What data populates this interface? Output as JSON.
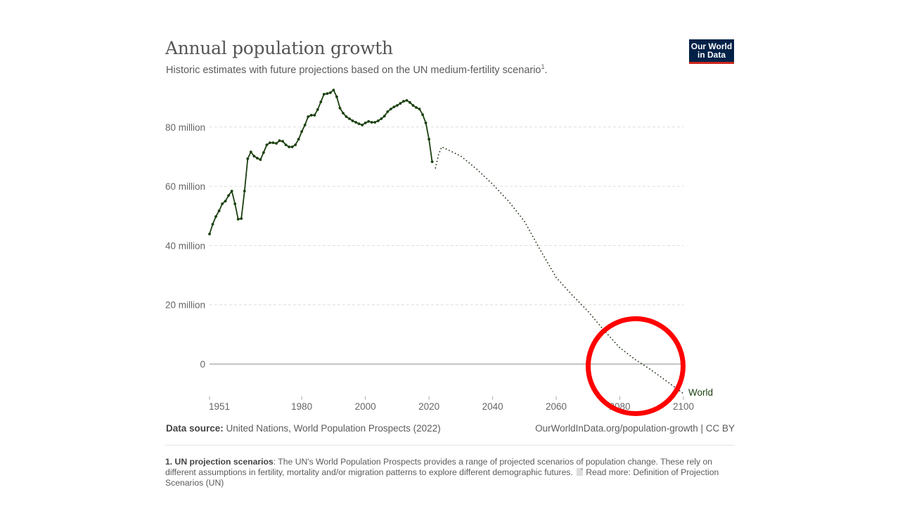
{
  "header": {
    "title": "Annual population growth",
    "subtitle": "Historic estimates with future projections based on the UN medium-fertility scenario",
    "subtitle_footnote_marker": "1",
    "subtitle_end": "."
  },
  "logo": {
    "line1": "Our World",
    "line2": "in Data",
    "bg_color": "#002147",
    "accent_color": "#ce261e"
  },
  "footer": {
    "source_label": "Data source:",
    "source_text": " United Nations, World Population Prospects (2022)",
    "url_text": "OurWorldInData.org/population-growth | CC BY"
  },
  "footnote": {
    "label": "1. UN projection scenarios",
    "text": ": The UN's World Population Prospects provides a range of projected scenarios of population change. These rely on different assumptions in fertility, mortality and/or migration patterns to explore different demographic futures.",
    "read_more": "Read more: Definition of Projection Scenarios (UN)"
  },
  "annotation": {
    "type": "red-circle",
    "color": "#ff0000",
    "highlight": "projection crossing zero around 2085–2090"
  },
  "chart_data": {
    "type": "line",
    "title": "Annual population growth",
    "xlabel": "",
    "ylabel": "",
    "xlim": [
      1951,
      2100
    ],
    "ylim": [
      -10,
      92.5
    ],
    "x_ticks": [
      1951,
      1980,
      2000,
      2020,
      2040,
      2060,
      2080,
      2100
    ],
    "y_ticks": [
      {
        "value": 0,
        "label": "0"
      },
      {
        "value": 20,
        "label": "20 million"
      },
      {
        "value": 40,
        "label": "40 million"
      },
      {
        "value": 60,
        "label": "60 million"
      },
      {
        "value": 80,
        "label": "80 million"
      }
    ],
    "grid": "horizontal dashed",
    "line_color": "#1b4010",
    "series": [
      {
        "name": "World",
        "label_position": "end-right",
        "style": "solid with markers",
        "unit": "million people",
        "x": [
          1951,
          1952,
          1953,
          1954,
          1955,
          1956,
          1957,
          1958,
          1959,
          1960,
          1961,
          1962,
          1963,
          1964,
          1965,
          1966,
          1967,
          1968,
          1969,
          1970,
          1971,
          1972,
          1973,
          1974,
          1975,
          1976,
          1977,
          1978,
          1979,
          1980,
          1981,
          1982,
          1983,
          1984,
          1985,
          1986,
          1987,
          1988,
          1989,
          1990,
          1991,
          1992,
          1993,
          1994,
          1995,
          1996,
          1997,
          1998,
          1999,
          2000,
          2001,
          2002,
          2003,
          2004,
          2005,
          2006,
          2007,
          2008,
          2009,
          2010,
          2011,
          2012,
          2013,
          2014,
          2015,
          2016,
          2017,
          2018,
          2019,
          2020,
          2021
        ],
        "values": [
          43.9,
          47.2,
          49.8,
          51.7,
          54.1,
          55.0,
          56.9,
          58.4,
          54.1,
          48.9,
          49.1,
          58.4,
          69.3,
          71.6,
          70.2,
          69.5,
          69.0,
          71.4,
          74.0,
          74.7,
          74.7,
          74.5,
          75.4,
          75.2,
          74.0,
          73.3,
          73.3,
          74.0,
          75.9,
          78.5,
          80.7,
          83.5,
          84.0,
          84.0,
          85.9,
          88.5,
          91.1,
          91.3,
          91.6,
          92.5,
          90.2,
          86.4,
          84.7,
          83.5,
          82.8,
          82.1,
          81.6,
          81.1,
          80.7,
          81.4,
          81.9,
          81.6,
          81.6,
          82.1,
          82.8,
          83.7,
          85.2,
          86.1,
          86.8,
          87.3,
          88.0,
          88.7,
          89.0,
          88.3,
          87.3,
          86.6,
          86.1,
          84.2,
          81.4,
          75.9,
          68.3
        ]
      },
      {
        "name": "World (projection)",
        "style": "dotted",
        "unit": "million people",
        "x": [
          2022,
          2023,
          2024,
          2026,
          2030,
          2035,
          2040,
          2045,
          2050,
          2055,
          2060,
          2065,
          2070,
          2075,
          2080,
          2085,
          2090,
          2095,
          2100
        ],
        "values": [
          66.0,
          70.7,
          73.3,
          72.3,
          70.2,
          65.8,
          60.7,
          55.0,
          48.2,
          38.5,
          29.2,
          23.3,
          17.8,
          11.4,
          5.5,
          1.4,
          -2.1,
          -6.0,
          -10.0
        ]
      }
    ]
  }
}
